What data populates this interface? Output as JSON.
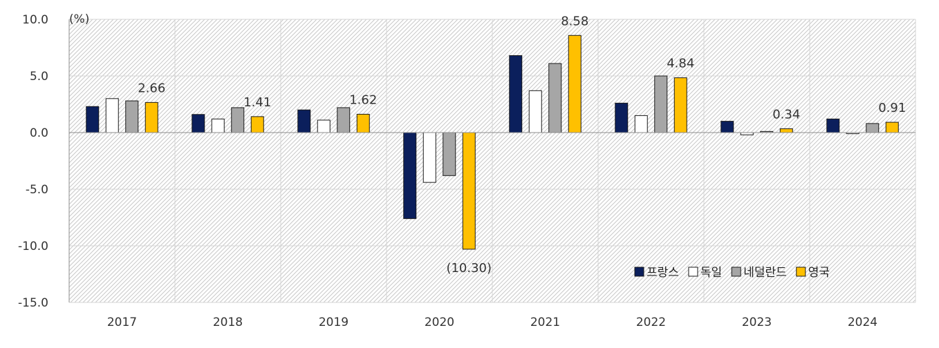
{
  "chart_data": {
    "type": "bar",
    "unit_label": "(%)",
    "categories": [
      "2017",
      "2018",
      "2019",
      "2020",
      "2021",
      "2022",
      "2023",
      "2024"
    ],
    "ylim": [
      -15,
      10
    ],
    "yticks": [
      10,
      5,
      0,
      -5,
      -10,
      -15
    ],
    "ytick_labels": [
      "10.0",
      "5.0",
      "0.0",
      "-5.0",
      "-10.0",
      "-15.0"
    ],
    "grid": true,
    "legend_position": "bottom-right",
    "series": [
      {
        "name": "프랑스",
        "color": "#0b1f5c",
        "values": [
          2.3,
          1.6,
          2.0,
          -7.6,
          6.8,
          2.6,
          1.0,
          1.2
        ]
      },
      {
        "name": "독일",
        "color": "#ffffff",
        "values": [
          3.0,
          1.2,
          1.1,
          -4.4,
          3.7,
          1.5,
          -0.2,
          -0.1
        ]
      },
      {
        "name": "네덜란드",
        "color": "#a6a6a6",
        "values": [
          2.8,
          2.2,
          2.2,
          -3.8,
          6.1,
          5.0,
          0.1,
          0.8
        ]
      },
      {
        "name": "영국",
        "color": "#ffc000",
        "values": [
          2.66,
          1.41,
          1.62,
          -10.3,
          8.58,
          4.84,
          0.34,
          0.91
        ]
      }
    ],
    "data_labels": [
      {
        "series": 3,
        "category": 0,
        "text": "2.66"
      },
      {
        "series": 3,
        "category": 1,
        "text": "1.41"
      },
      {
        "series": 3,
        "category": 2,
        "text": "1.62"
      },
      {
        "series": 3,
        "category": 3,
        "text": "(10.30)",
        "color": "#ff0000"
      },
      {
        "series": 3,
        "category": 4,
        "text": "8.58"
      },
      {
        "series": 3,
        "category": 5,
        "text": "4.84"
      },
      {
        "series": 3,
        "category": 6,
        "text": "0.34"
      },
      {
        "series": 3,
        "category": 7,
        "text": "0.91"
      }
    ]
  }
}
